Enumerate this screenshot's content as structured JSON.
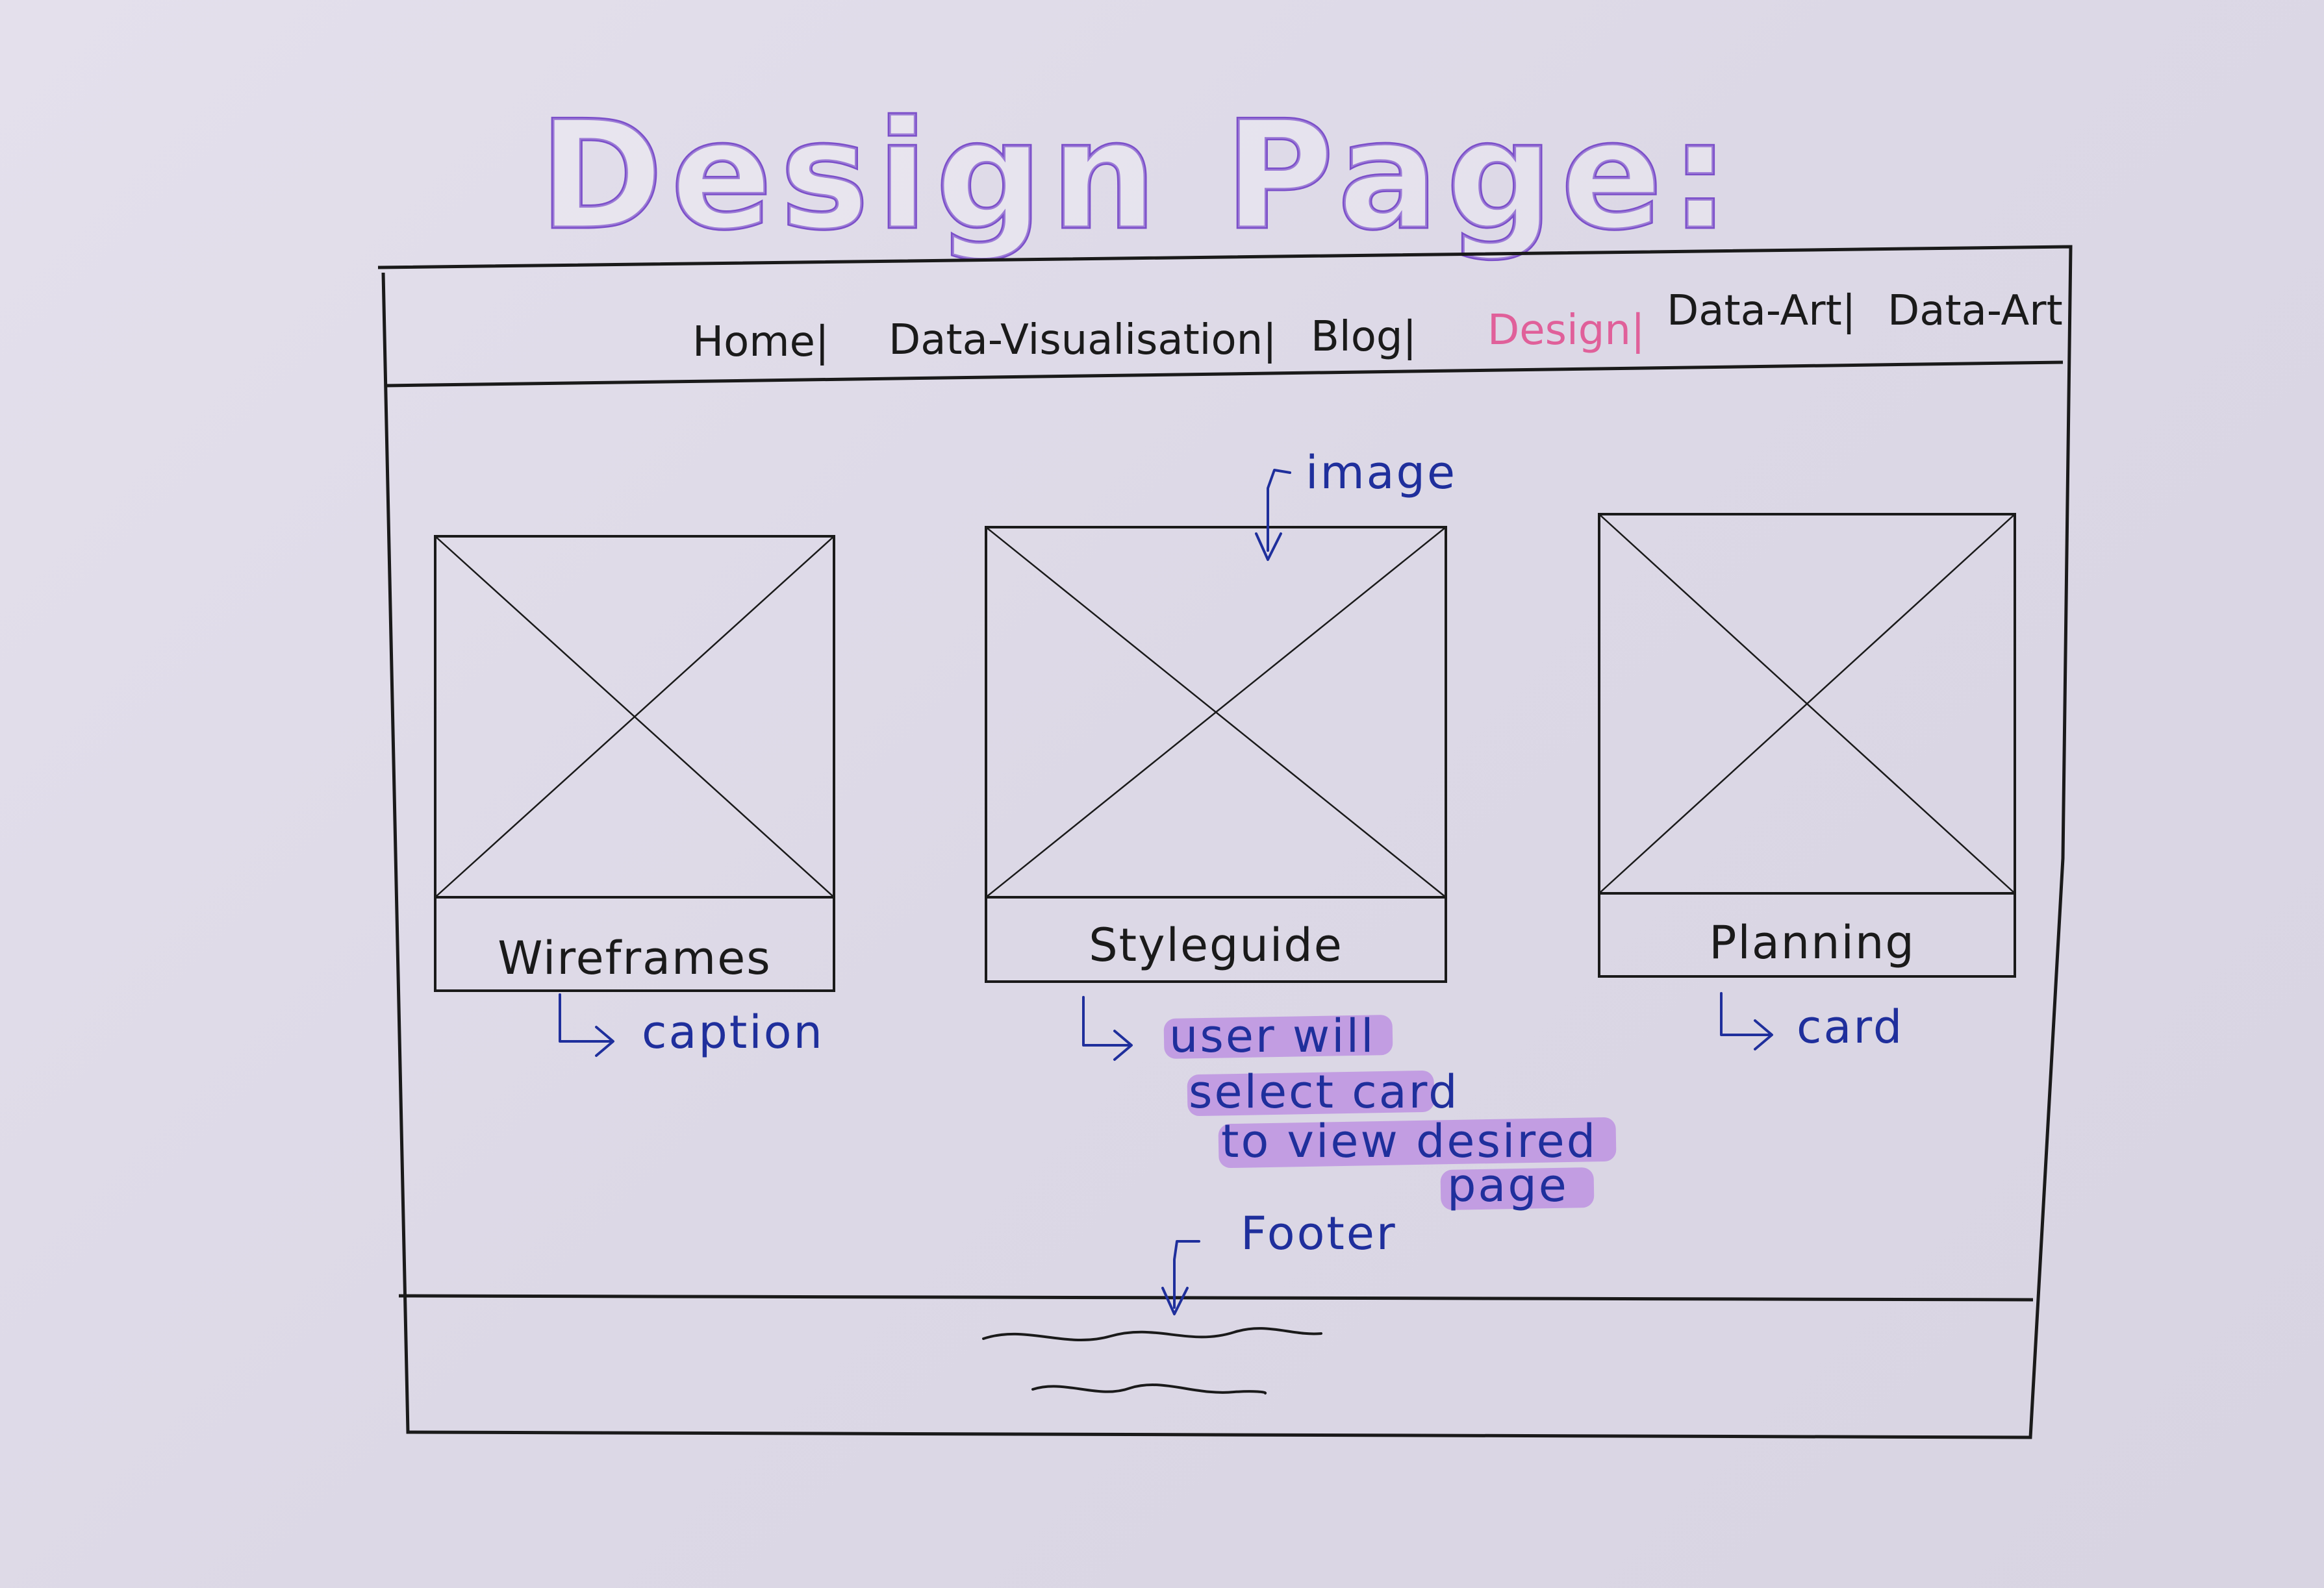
{
  "title": "Design Page:",
  "nav": {
    "items": [
      {
        "label": "Home|"
      },
      {
        "label": "Data-Visualisation|"
      },
      {
        "label": "Blog|"
      },
      {
        "label": "Design|",
        "active": true
      },
      {
        "label": "Data-Art|"
      },
      {
        "label": "Data-Art"
      }
    ]
  },
  "cards": [
    {
      "caption": "Wireframes"
    },
    {
      "caption": "Styleguide"
    },
    {
      "caption": "Planning"
    }
  ],
  "annotations": {
    "image": "image",
    "caption": "caption",
    "card": "card",
    "note_lines": [
      "user will",
      "select card",
      "to view desired",
      "page"
    ],
    "footer": "Footer"
  },
  "colors": {
    "title_ink": "#7b4fc9",
    "nav_active": "#e0609a",
    "annotation_ink": "#1f2f9c",
    "line_ink": "#1a1a1a",
    "highlight": "#b57ee0",
    "paper": "#dcd8e6"
  }
}
